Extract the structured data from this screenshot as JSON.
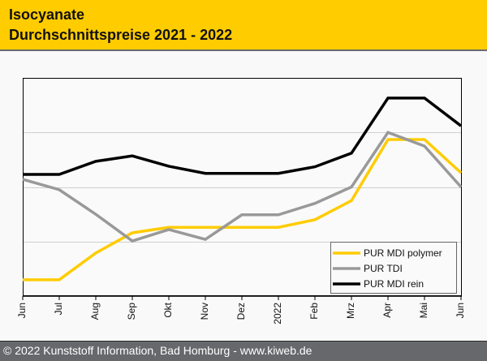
{
  "header": {
    "title_line1": "Isocyanate",
    "title_line2": "Durchschnittspreise 2021 - 2022"
  },
  "footer": {
    "text": "© 2022 Kunststoff Information, Bad Homburg - www.kiweb.de"
  },
  "chart_data": {
    "type": "line",
    "title": "Isocyanate Durchschnittspreise 2021 - 2022",
    "xlabel": "",
    "ylabel": "",
    "y_tick_labels_shown": false,
    "ylim": [
      0,
      4
    ],
    "y_units": "relative grid units (no axis labels shown)",
    "grid": "horizontal",
    "legend_position": "bottom-right",
    "categories": [
      "Jun",
      "Jul",
      "Aug",
      "Sep",
      "Okt",
      "Nov",
      "Dez",
      "2022",
      "Feb",
      "Mrz",
      "Apr",
      "Mai",
      "Jun"
    ],
    "series": [
      {
        "name": "PUR MDI polymer",
        "color": "#ffcc00",
        "values": [
          0.3,
          0.3,
          0.79,
          1.16,
          1.26,
          1.26,
          1.26,
          1.26,
          1.4,
          1.75,
          2.87,
          2.87,
          2.26
        ]
      },
      {
        "name": "PUR TDI",
        "color": "#999999",
        "values": [
          2.14,
          1.95,
          1.5,
          1.01,
          1.22,
          1.04,
          1.49,
          1.49,
          1.7,
          2.0,
          3.0,
          2.75,
          2.0
        ]
      },
      {
        "name": "PUR MDI rein",
        "color": "#000000",
        "values": [
          2.23,
          2.23,
          2.47,
          2.57,
          2.38,
          2.25,
          2.25,
          2.25,
          2.37,
          2.62,
          3.63,
          3.63,
          3.12
        ]
      }
    ]
  }
}
